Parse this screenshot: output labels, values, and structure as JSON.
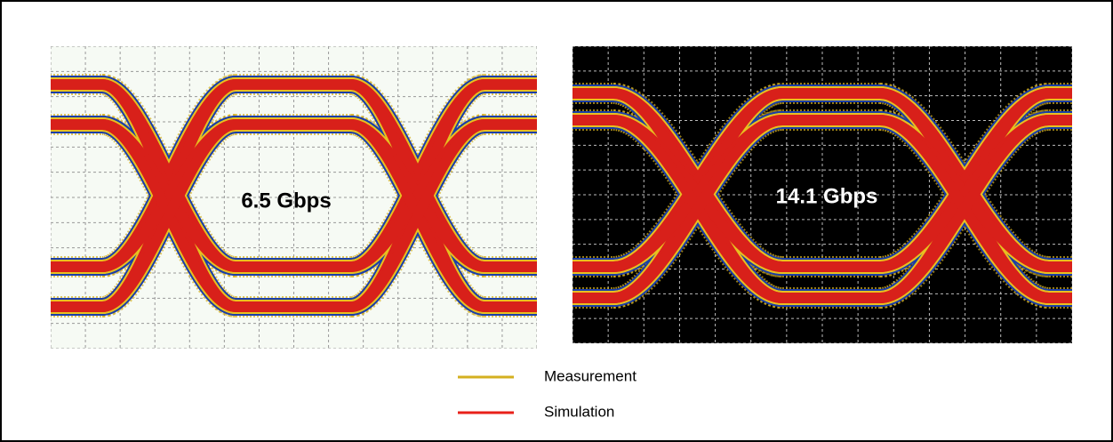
{
  "panels": [
    {
      "label": "6.5 Gbps"
    },
    {
      "label": "14.1 Gbps"
    }
  ],
  "legend": [
    {
      "label": "Measurement",
      "color": "#d4b020"
    },
    {
      "label": "Simulation",
      "color": "#e8201a"
    }
  ]
}
